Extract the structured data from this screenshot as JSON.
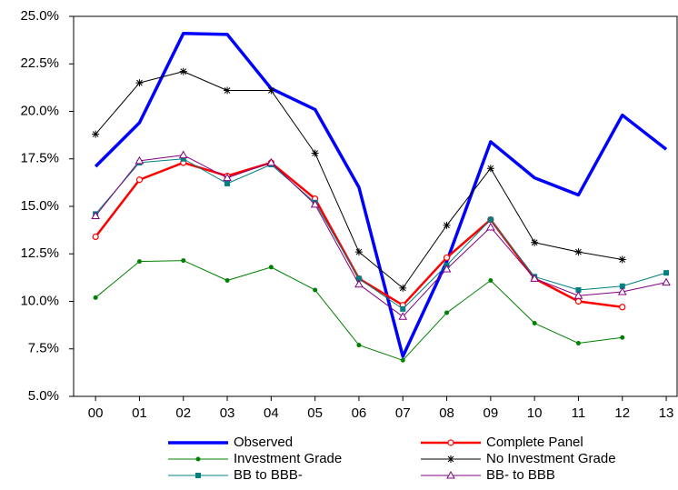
{
  "chart_data": {
    "type": "line",
    "categories": [
      "00",
      "01",
      "02",
      "03",
      "04",
      "05",
      "06",
      "07",
      "08",
      "09",
      "10",
      "11",
      "12",
      "13"
    ],
    "ylim": [
      5,
      25
    ],
    "yticks": [
      {
        "value": 5,
        "label": "5.0%"
      },
      {
        "value": 7.5,
        "label": "7.5%"
      },
      {
        "value": 10,
        "label": "10.0%"
      },
      {
        "value": 12.5,
        "label": "12.5%"
      },
      {
        "value": 15,
        "label": "15.0%"
      },
      {
        "value": 17.5,
        "label": "17.5%"
      },
      {
        "value": 20,
        "label": "20.0%"
      },
      {
        "value": 22.5,
        "label": "22.5%"
      },
      {
        "value": 25,
        "label": "25.0%"
      }
    ],
    "grid": false,
    "series": [
      {
        "name": "Observed",
        "color": "#0000ff",
        "line_width": 3.5,
        "marker": "none",
        "values": [
          17.1,
          19.4,
          24.1,
          24.05,
          21.2,
          20.1,
          16.0,
          7.1,
          12.1,
          18.4,
          16.5,
          15.6,
          19.8,
          18.0
        ]
      },
      {
        "name": "Complete Panel",
        "color": "#ff0000",
        "line_width": 2.5,
        "marker": "open-circle",
        "values": [
          13.4,
          16.4,
          17.3,
          16.6,
          17.3,
          15.4,
          11.2,
          9.8,
          12.3,
          14.3,
          11.2,
          10.0,
          9.7,
          null
        ]
      },
      {
        "name": "Investment Grade",
        "color": "#008000",
        "line_width": 1,
        "marker": "dot",
        "values": [
          10.2,
          12.1,
          12.15,
          11.1,
          11.8,
          10.6,
          7.7,
          6.9,
          9.4,
          11.1,
          8.85,
          7.8,
          8.1,
          null
        ]
      },
      {
        "name": "No Investment Grade",
        "color": "#000000",
        "line_width": 1,
        "marker": "asterisk",
        "values": [
          18.8,
          21.5,
          22.1,
          21.1,
          21.1,
          17.8,
          12.6,
          10.7,
          14.0,
          17.0,
          13.1,
          12.6,
          12.2,
          null
        ]
      },
      {
        "name": "BB to BBB-",
        "color": "#008080",
        "line_width": 1,
        "marker": "square",
        "values": [
          14.6,
          17.3,
          17.5,
          16.2,
          17.2,
          15.2,
          11.2,
          9.6,
          11.9,
          14.3,
          11.3,
          10.6,
          10.8,
          11.5
        ]
      },
      {
        "name": "BB- to BBB",
        "color": "#800080",
        "line_width": 1,
        "marker": "open-triangle",
        "values": [
          14.5,
          17.4,
          17.7,
          16.5,
          17.3,
          15.1,
          10.9,
          9.2,
          11.7,
          13.9,
          11.2,
          10.3,
          10.5,
          11.0
        ]
      }
    ]
  }
}
